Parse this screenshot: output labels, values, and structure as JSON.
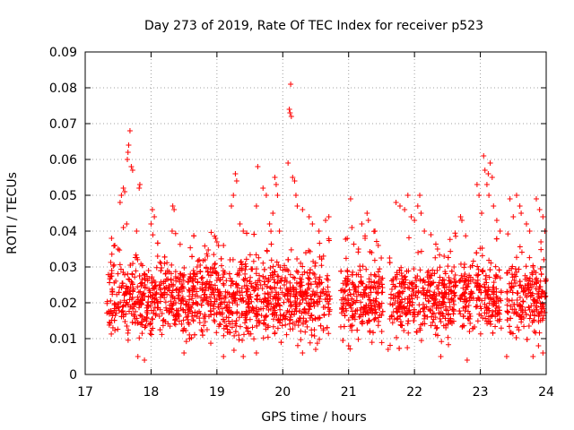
{
  "chart_data": {
    "type": "scatter",
    "title": "Day 273 of 2019, Rate Of TEC Index for receiver p523",
    "xlabel": "GPS time / hours",
    "ylabel": "ROTI / TECUs",
    "xlim": [
      17,
      24
    ],
    "ylim": [
      0,
      0.09
    ],
    "x_ticks": [
      "17",
      "18",
      "19",
      "20",
      "21",
      "22",
      "23",
      "24"
    ],
    "y_ticks": [
      "0",
      "0.01",
      "0.02",
      "0.03",
      "0.04",
      "0.05",
      "0.06",
      "0.07",
      "0.08",
      "0.09"
    ],
    "grid": true,
    "marker": "plus",
    "series": [
      {
        "name": "ROTI",
        "color": "#ff0000",
        "points": [
          [
            17.68,
            0.068
          ],
          [
            17.66,
            0.064
          ],
          [
            17.65,
            0.062
          ],
          [
            17.64,
            0.06
          ],
          [
            17.7,
            0.058
          ],
          [
            17.72,
            0.057
          ],
          [
            17.58,
            0.052
          ],
          [
            17.55,
            0.05
          ],
          [
            17.53,
            0.048
          ],
          [
            17.6,
            0.051
          ],
          [
            17.83,
            0.053
          ],
          [
            17.82,
            0.052
          ],
          [
            17.4,
            0.038
          ],
          [
            17.45,
            0.036
          ],
          [
            17.5,
            0.035
          ],
          [
            17.58,
            0.041
          ],
          [
            17.63,
            0.042
          ],
          [
            17.78,
            0.04
          ],
          [
            18.02,
            0.046
          ],
          [
            18.05,
            0.044
          ],
          [
            18.0,
            0.042
          ],
          [
            18.33,
            0.047
          ],
          [
            18.35,
            0.046
          ],
          [
            18.32,
            0.04
          ],
          [
            18.1,
            0.033
          ],
          [
            18.15,
            0.031
          ],
          [
            18.25,
            0.029
          ],
          [
            18.45,
            0.028
          ],
          [
            18.6,
            0.027
          ],
          [
            18.7,
            0.03
          ],
          [
            18.82,
            0.032
          ],
          [
            18.98,
            0.038
          ],
          [
            19.0,
            0.037
          ],
          [
            19.1,
            0.036
          ],
          [
            19.2,
            0.032
          ],
          [
            19.28,
            0.056
          ],
          [
            19.3,
            0.054
          ],
          [
            19.25,
            0.05
          ],
          [
            19.22,
            0.047
          ],
          [
            19.35,
            0.042
          ],
          [
            19.4,
            0.04
          ],
          [
            19.6,
            0.047
          ],
          [
            19.62,
            0.058
          ],
          [
            19.7,
            0.052
          ],
          [
            19.75,
            0.05
          ],
          [
            19.88,
            0.055
          ],
          [
            19.9,
            0.053
          ],
          [
            19.92,
            0.05
          ],
          [
            19.85,
            0.045
          ],
          [
            19.8,
            0.042
          ],
          [
            19.95,
            0.04
          ],
          [
            20.12,
            0.081
          ],
          [
            20.1,
            0.074
          ],
          [
            20.11,
            0.073
          ],
          [
            20.13,
            0.072
          ],
          [
            20.08,
            0.059
          ],
          [
            20.15,
            0.055
          ],
          [
            20.18,
            0.054
          ],
          [
            20.2,
            0.05
          ],
          [
            20.22,
            0.047
          ],
          [
            20.3,
            0.046
          ],
          [
            20.4,
            0.044
          ],
          [
            20.45,
            0.042
          ],
          [
            20.55,
            0.04
          ],
          [
            20.7,
            0.044
          ],
          [
            20.65,
            0.043
          ],
          [
            21.03,
            0.049
          ],
          [
            21.05,
            0.041
          ],
          [
            21.2,
            0.042
          ],
          [
            21.28,
            0.045
          ],
          [
            21.3,
            0.043
          ],
          [
            21.25,
            0.038
          ],
          [
            21.4,
            0.04
          ],
          [
            21.45,
            0.036
          ],
          [
            21.35,
            0.034
          ],
          [
            21.15,
            0.035
          ],
          [
            21.72,
            0.048
          ],
          [
            21.78,
            0.047
          ],
          [
            21.85,
            0.046
          ],
          [
            21.9,
            0.05
          ],
          [
            21.95,
            0.044
          ],
          [
            22.05,
            0.047
          ],
          [
            22.1,
            0.045
          ],
          [
            22.08,
            0.05
          ],
          [
            22.0,
            0.043
          ],
          [
            22.15,
            0.04
          ],
          [
            22.25,
            0.039
          ],
          [
            22.35,
            0.035
          ],
          [
            22.45,
            0.033
          ],
          [
            22.6,
            0.03
          ],
          [
            22.7,
            0.044
          ],
          [
            22.72,
            0.043
          ],
          [
            22.95,
            0.053
          ],
          [
            22.98,
            0.05
          ],
          [
            23.05,
            0.061
          ],
          [
            23.07,
            0.057
          ],
          [
            23.12,
            0.056
          ],
          [
            23.15,
            0.059
          ],
          [
            23.18,
            0.055
          ],
          [
            23.1,
            0.053
          ],
          [
            23.13,
            0.05
          ],
          [
            23.2,
            0.047
          ],
          [
            23.02,
            0.045
          ],
          [
            23.25,
            0.043
          ],
          [
            23.3,
            0.04
          ],
          [
            23.45,
            0.049
          ],
          [
            23.5,
            0.044
          ],
          [
            23.55,
            0.05
          ],
          [
            23.6,
            0.047
          ],
          [
            23.62,
            0.045
          ],
          [
            23.7,
            0.042
          ],
          [
            23.75,
            0.04
          ],
          [
            23.85,
            0.049
          ],
          [
            23.9,
            0.046
          ],
          [
            23.95,
            0.044
          ],
          [
            23.98,
            0.04
          ],
          [
            23.92,
            0.037
          ],
          [
            17.8,
            0.005
          ],
          [
            17.9,
            0.004
          ],
          [
            18.5,
            0.006
          ],
          [
            19.1,
            0.005
          ],
          [
            19.4,
            0.005
          ],
          [
            19.6,
            0.006
          ],
          [
            20.3,
            0.006
          ],
          [
            20.5,
            0.007
          ],
          [
            21.0,
            0.008
          ],
          [
            21.6,
            0.007
          ],
          [
            22.4,
            0.005
          ],
          [
            22.8,
            0.004
          ],
          [
            23.4,
            0.005
          ],
          [
            23.8,
            0.005
          ],
          [
            23.95,
            0.006
          ]
        ]
      }
    ]
  }
}
